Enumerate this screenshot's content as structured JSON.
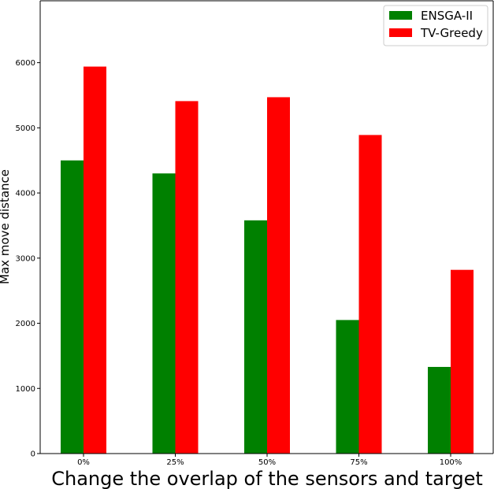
{
  "chart_data": {
    "type": "bar",
    "xlabel": "Change the overlap of the sensors and target",
    "ylabel": "Max move distance",
    "categories": [
      "0%",
      "25%",
      "50%",
      "75%",
      "100%"
    ],
    "series": [
      {
        "name": "ENSGA-II",
        "color": "#008000",
        "values": [
          4500,
          4300,
          3580,
          2050,
          1330
        ]
      },
      {
        "name": "TV-Greedy",
        "color": "#ff0000",
        "values": [
          5940,
          5410,
          5470,
          4890,
          2820
        ]
      }
    ],
    "ylim": [
      0,
      6950
    ],
    "yticks": [
      0,
      1000,
      2000,
      3000,
      4000,
      5000,
      6000
    ],
    "legend_position": "top-right",
    "grid": false
  }
}
